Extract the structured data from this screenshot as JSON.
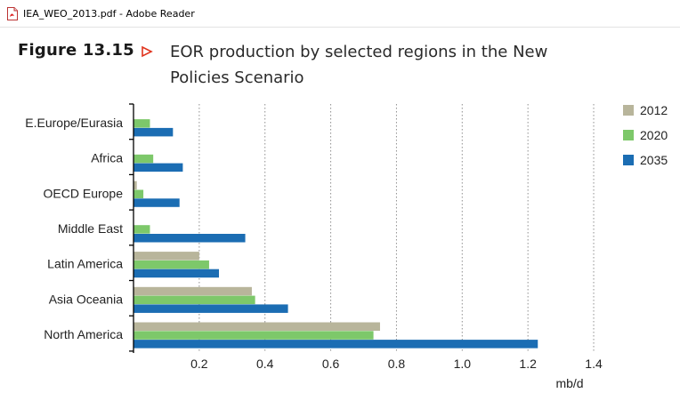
{
  "window": {
    "title": "IEA_WEO_2013.pdf - Adobe Reader",
    "icon": "pdf-file-icon"
  },
  "figure": {
    "number": "Figure 13.15",
    "title_line1": "EOR production by selected regions in the New",
    "title_line2": "Policies Scenario"
  },
  "chart_data": {
    "type": "bar",
    "orientation": "horizontal",
    "categories": [
      "E.Europe/Eurasia",
      "Africa",
      "OECD Europe",
      "Middle East",
      "Latin America",
      "Asia Oceania",
      "North America"
    ],
    "series": [
      {
        "name": "2012",
        "color": "#b8b59b",
        "values": [
          0,
          0,
          0.01,
          0,
          0.2,
          0.36,
          0.75
        ]
      },
      {
        "name": "2020",
        "color": "#7dc86a",
        "values": [
          0.05,
          0.06,
          0.03,
          0.05,
          0.23,
          0.37,
          0.73
        ]
      },
      {
        "name": "2035",
        "color": "#1b6db3",
        "values": [
          0.12,
          0.15,
          0.14,
          0.34,
          0.26,
          0.47,
          1.23
        ]
      }
    ],
    "xlim": [
      0,
      1.4
    ],
    "xticks": [
      "0.2",
      "0.4",
      "0.6",
      "0.8",
      "1.0",
      "1.2",
      "1.4"
    ],
    "xtick_values": [
      0.2,
      0.4,
      0.6,
      0.8,
      1.0,
      1.2,
      1.4
    ],
    "xlabel": "mb/d",
    "ylabel": "",
    "grid": "vertical dotted",
    "legend_position": "right"
  }
}
